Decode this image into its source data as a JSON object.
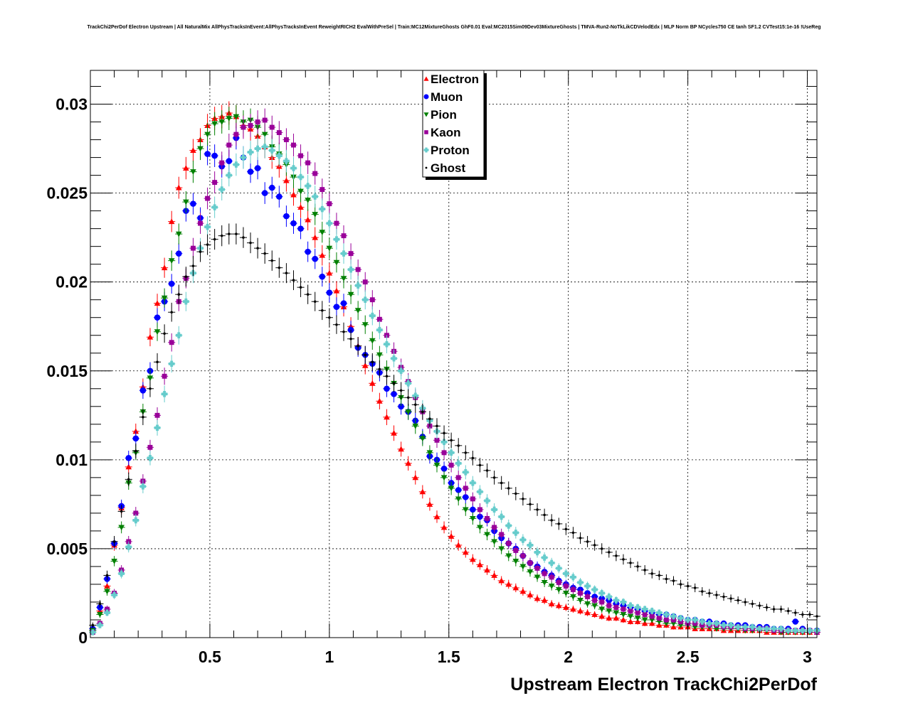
{
  "title": "TrackChi2PerDof Electron Upstream | All NaturalMix AllPhysTracksInEvent:AllPhysTracksInEvent ReweightRICH2 EvalWithPreSel | Train:MC12MixtureGhosts GhF0.01 Eval:MC2015Sim09Dev03MixtureGhosts | TMVA-Run2-NoTkLikCDVelodEdx | MLP Norm BP NCycles750 CE tanh SF1.2 CVTest15:1e-16 !UseReg",
  "chart_data": {
    "type": "scatter",
    "xlabel": "Upstream Electron TrackChi2PerDof",
    "ylabel": "",
    "xlim": [
      0,
      3.04
    ],
    "ylim": [
      0,
      0.0319
    ],
    "x_ticks": [
      {
        "value": 0.5,
        "label": "0.5"
      },
      {
        "value": 1,
        "label": "1"
      },
      {
        "value": 1.5,
        "label": "1.5"
      },
      {
        "value": 2,
        "label": "2"
      },
      {
        "value": 2.5,
        "label": "2.5"
      },
      {
        "value": 3,
        "label": "3"
      }
    ],
    "y_ticks": [
      {
        "value": 0,
        "label": "0"
      },
      {
        "value": 0.005,
        "label": "0.005"
      },
      {
        "value": 0.01,
        "label": "0.01"
      },
      {
        "value": 0.015,
        "label": "0.015"
      },
      {
        "value": 0.02,
        "label": "0.02"
      },
      {
        "value": 0.025,
        "label": "0.025"
      },
      {
        "value": 0.03,
        "label": "0.03"
      }
    ],
    "grid": true,
    "legend_position": "top-center",
    "x": [
      0.01,
      0.04,
      0.07,
      0.1,
      0.13,
      0.16,
      0.19,
      0.22,
      0.25,
      0.28,
      0.31,
      0.34,
      0.37,
      0.4,
      0.43,
      0.46,
      0.49,
      0.52,
      0.55,
      0.58,
      0.61,
      0.64,
      0.67,
      0.7,
      0.73,
      0.76,
      0.79,
      0.82,
      0.85,
      0.88,
      0.91,
      0.94,
      0.97,
      1.0,
      1.03,
      1.06,
      1.09,
      1.12,
      1.15,
      1.18,
      1.21,
      1.24,
      1.27,
      1.3,
      1.33,
      1.36,
      1.39,
      1.42,
      1.45,
      1.48,
      1.51,
      1.54,
      1.57,
      1.6,
      1.63,
      1.66,
      1.69,
      1.72,
      1.75,
      1.78,
      1.81,
      1.84,
      1.87,
      1.9,
      1.93,
      1.96,
      1.99,
      2.02,
      2.05,
      2.08,
      2.11,
      2.14,
      2.17,
      2.2,
      2.23,
      2.26,
      2.29,
      2.32,
      2.35,
      2.38,
      2.41,
      2.44,
      2.47,
      2.5,
      2.53,
      2.56,
      2.59,
      2.62,
      2.65,
      2.68,
      2.71,
      2.74,
      2.77,
      2.8,
      2.83,
      2.86,
      2.89,
      2.92,
      2.95,
      2.98,
      3.01,
      3.04
    ],
    "series": [
      {
        "name": "Electron",
        "color": "#ff0000",
        "marker": "triangle-up",
        "values": [
          0.0004,
          0.0015,
          0.0029,
          0.0052,
          0.0073,
          0.0096,
          0.0116,
          0.0141,
          0.0169,
          0.0188,
          0.0208,
          0.0234,
          0.0253,
          0.0264,
          0.0274,
          0.028,
          0.0288,
          0.0292,
          0.0293,
          0.0295,
          0.0293,
          0.0288,
          0.0286,
          0.0282,
          0.0276,
          0.027,
          0.0265,
          0.0257,
          0.0249,
          0.0242,
          0.0235,
          0.0225,
          0.0215,
          0.0205,
          0.0195,
          0.0186,
          0.0175,
          0.0164,
          0.0153,
          0.0143,
          0.0133,
          0.0124,
          0.0115,
          0.0106,
          0.0098,
          0.009,
          0.0082,
          0.0075,
          0.0068,
          0.0062,
          0.0057,
          0.0052,
          0.0048,
          0.0044,
          0.0041,
          0.0038,
          0.0035,
          0.0032,
          0.003,
          0.0028,
          0.0026,
          0.0024,
          0.0022,
          0.0021,
          0.0019,
          0.0018,
          0.0017,
          0.0016,
          0.0015,
          0.0014,
          0.0013,
          0.0012,
          0.0011,
          0.0011,
          0.001,
          0.0009,
          0.0009,
          0.0008,
          0.0008,
          0.0007,
          0.0007,
          0.0006,
          0.0006,
          0.0006,
          0.0005,
          0.0005,
          0.0005,
          0.0005,
          0.0004,
          0.0004,
          0.0004,
          0.0004,
          0.0004,
          0.0004,
          0.0003,
          0.0003,
          0.0003,
          0.0003,
          0.0003,
          0.0003,
          0.0003,
          0.0003
        ]
      },
      {
        "name": "Muon",
        "color": "#0000ff",
        "marker": "circle",
        "values": [
          0.0005,
          0.0017,
          0.0033,
          0.0053,
          0.0074,
          0.0101,
          0.0112,
          0.0139,
          0.015,
          0.018,
          0.0189,
          0.0199,
          0.0216,
          0.024,
          0.0244,
          0.0236,
          0.0272,
          0.0271,
          0.0265,
          0.0268,
          0.0281,
          0.027,
          0.0262,
          0.0264,
          0.025,
          0.0253,
          0.0248,
          0.0237,
          0.0233,
          0.023,
          0.0217,
          0.0213,
          0.0203,
          0.0194,
          0.0186,
          0.0188,
          0.0173,
          0.0163,
          0.0159,
          0.0154,
          0.0149,
          0.014,
          0.0137,
          0.013,
          0.0127,
          0.0122,
          0.0113,
          0.0102,
          0.01,
          0.0095,
          0.0087,
          0.0083,
          0.0079,
          0.0072,
          0.0068,
          0.0066,
          0.006,
          0.0056,
          0.0053,
          0.005,
          0.0046,
          0.0042,
          0.004,
          0.0037,
          0.0035,
          0.0032,
          0.003,
          0.0028,
          0.0027,
          0.0025,
          0.0023,
          0.0022,
          0.0021,
          0.0019,
          0.0018,
          0.0017,
          0.0016,
          0.0015,
          0.0014,
          0.0013,
          0.0013,
          0.0012,
          0.0011,
          0.001,
          0.001,
          0.0009,
          0.0009,
          0.0008,
          0.0008,
          0.0007,
          0.0007,
          0.0007,
          0.0006,
          0.0006,
          0.0006,
          0.0005,
          0.0005,
          0.0005,
          0.0009,
          0.0005,
          0.0004,
          0.0004
        ]
      },
      {
        "name": "Pion",
        "color": "#008000",
        "marker": "triangle-down",
        "values": [
          0.0004,
          0.0013,
          0.0026,
          0.0043,
          0.0062,
          0.0087,
          0.0104,
          0.0127,
          0.0146,
          0.0172,
          0.0191,
          0.0212,
          0.0227,
          0.0245,
          0.0262,
          0.0275,
          0.0283,
          0.0289,
          0.029,
          0.0292,
          0.0293,
          0.029,
          0.0291,
          0.0287,
          0.0283,
          0.0276,
          0.0272,
          0.0266,
          0.0259,
          0.0251,
          0.0246,
          0.0238,
          0.0228,
          0.0219,
          0.0211,
          0.0202,
          0.0193,
          0.0184,
          0.0176,
          0.0167,
          0.0159,
          0.0151,
          0.0143,
          0.0135,
          0.0127,
          0.0119,
          0.0112,
          0.0104,
          0.0097,
          0.009,
          0.0084,
          0.0078,
          0.0072,
          0.0067,
          0.0062,
          0.0058,
          0.0054,
          0.005,
          0.0046,
          0.0043,
          0.004,
          0.0037,
          0.0034,
          0.0031,
          0.0029,
          0.0027,
          0.0025,
          0.0023,
          0.0021,
          0.0019,
          0.0018,
          0.0016,
          0.0015,
          0.0014,
          0.0013,
          0.0012,
          0.0011,
          0.001,
          0.001,
          0.0009,
          0.0008,
          0.0008,
          0.0007,
          0.0007,
          0.0006,
          0.0006,
          0.0006,
          0.0005,
          0.0005,
          0.0005,
          0.0005,
          0.0004,
          0.0004,
          0.0004,
          0.0004,
          0.0004,
          0.0003,
          0.0003,
          0.0003,
          0.0003,
          0.0003,
          0.0003
        ]
      },
      {
        "name": "Kaon",
        "color": "#990099",
        "marker": "square",
        "values": [
          0.0003,
          0.0008,
          0.0016,
          0.0025,
          0.0038,
          0.0054,
          0.007,
          0.0088,
          0.0107,
          0.0125,
          0.0147,
          0.0166,
          0.0189,
          0.0202,
          0.0219,
          0.0233,
          0.0247,
          0.0256,
          0.0267,
          0.0277,
          0.0283,
          0.0287,
          0.0288,
          0.029,
          0.0291,
          0.0287,
          0.0284,
          0.028,
          0.0277,
          0.0271,
          0.0267,
          0.0261,
          0.0252,
          0.0244,
          0.0233,
          0.0226,
          0.0216,
          0.0207,
          0.02,
          0.019,
          0.0179,
          0.017,
          0.0161,
          0.0152,
          0.0144,
          0.0135,
          0.0127,
          0.0119,
          0.0111,
          0.0104,
          0.0097,
          0.009,
          0.0084,
          0.0078,
          0.0072,
          0.0067,
          0.0062,
          0.0058,
          0.0053,
          0.0049,
          0.0046,
          0.0042,
          0.0039,
          0.0036,
          0.0034,
          0.0031,
          0.0029,
          0.0027,
          0.0025,
          0.0023,
          0.0021,
          0.002,
          0.0018,
          0.0017,
          0.0016,
          0.0015,
          0.0014,
          0.0013,
          0.0012,
          0.0011,
          0.001,
          0.001,
          0.0009,
          0.0008,
          0.0008,
          0.0007,
          0.0007,
          0.0007,
          0.0006,
          0.0006,
          0.0006,
          0.0005,
          0.0005,
          0.0005,
          0.0005,
          0.0004,
          0.0004,
          0.0004,
          0.0004,
          0.0004,
          0.0004,
          0.0003
        ]
      },
      {
        "name": "Proton",
        "color": "#66cccc",
        "marker": "cross",
        "values": [
          0.0003,
          0.0007,
          0.0014,
          0.0024,
          0.0036,
          0.0051,
          0.0066,
          0.0085,
          0.0101,
          0.0118,
          0.0137,
          0.0154,
          0.017,
          0.0189,
          0.0205,
          0.0219,
          0.0231,
          0.0242,
          0.0252,
          0.026,
          0.0266,
          0.027,
          0.0273,
          0.0275,
          0.0276,
          0.0274,
          0.0271,
          0.0268,
          0.0264,
          0.0259,
          0.0254,
          0.0248,
          0.0241,
          0.0233,
          0.0224,
          0.0216,
          0.0207,
          0.0198,
          0.019,
          0.0181,
          0.0173,
          0.0165,
          0.0157,
          0.015,
          0.0143,
          0.0136,
          0.0129,
          0.0122,
          0.0116,
          0.011,
          0.0104,
          0.0098,
          0.0093,
          0.0087,
          0.0082,
          0.0077,
          0.0072,
          0.0068,
          0.0063,
          0.0059,
          0.0055,
          0.0052,
          0.0048,
          0.0045,
          0.0042,
          0.0039,
          0.0036,
          0.0034,
          0.0031,
          0.0029,
          0.0027,
          0.0025,
          0.0023,
          0.0021,
          0.002,
          0.0018,
          0.0017,
          0.0016,
          0.0015,
          0.0014,
          0.0013,
          0.0012,
          0.0011,
          0.001,
          0.001,
          0.0009,
          0.0008,
          0.0008,
          0.0007,
          0.0007,
          0.0006,
          0.0006,
          0.0006,
          0.0005,
          0.0005,
          0.0005,
          0.0005,
          0.0004,
          0.0004,
          0.0004,
          0.0004,
          0.0004
        ]
      },
      {
        "name": "Ghost",
        "color": "#000000",
        "marker": "dot",
        "values": [
          0.0007,
          0.0019,
          0.0035,
          0.0054,
          0.0071,
          0.0089,
          0.0105,
          0.0124,
          0.014,
          0.0155,
          0.0171,
          0.0183,
          0.0193,
          0.0203,
          0.0209,
          0.0217,
          0.0221,
          0.0224,
          0.0226,
          0.0227,
          0.0227,
          0.0225,
          0.0222,
          0.0219,
          0.0216,
          0.0212,
          0.0208,
          0.0205,
          0.0201,
          0.0197,
          0.0193,
          0.0189,
          0.0184,
          0.018,
          0.0176,
          0.0172,
          0.0168,
          0.0164,
          0.0159,
          0.0155,
          0.0151,
          0.0147,
          0.0143,
          0.0139,
          0.0135,
          0.0131,
          0.0127,
          0.0123,
          0.0119,
          0.0115,
          0.0111,
          0.0108,
          0.0104,
          0.0101,
          0.0097,
          0.0094,
          0.009,
          0.0087,
          0.0084,
          0.0081,
          0.0078,
          0.0075,
          0.0072,
          0.0069,
          0.0066,
          0.0064,
          0.0061,
          0.0059,
          0.0056,
          0.0054,
          0.0052,
          0.005,
          0.0048,
          0.0046,
          0.0044,
          0.0042,
          0.004,
          0.0038,
          0.0036,
          0.0035,
          0.0033,
          0.0032,
          0.003,
          0.0029,
          0.0028,
          0.0026,
          0.0025,
          0.0024,
          0.0023,
          0.0022,
          0.0021,
          0.002,
          0.0019,
          0.0018,
          0.0017,
          0.0016,
          0.0016,
          0.0015,
          0.0014,
          0.0013,
          0.0013,
          0.0012
        ]
      }
    ]
  }
}
